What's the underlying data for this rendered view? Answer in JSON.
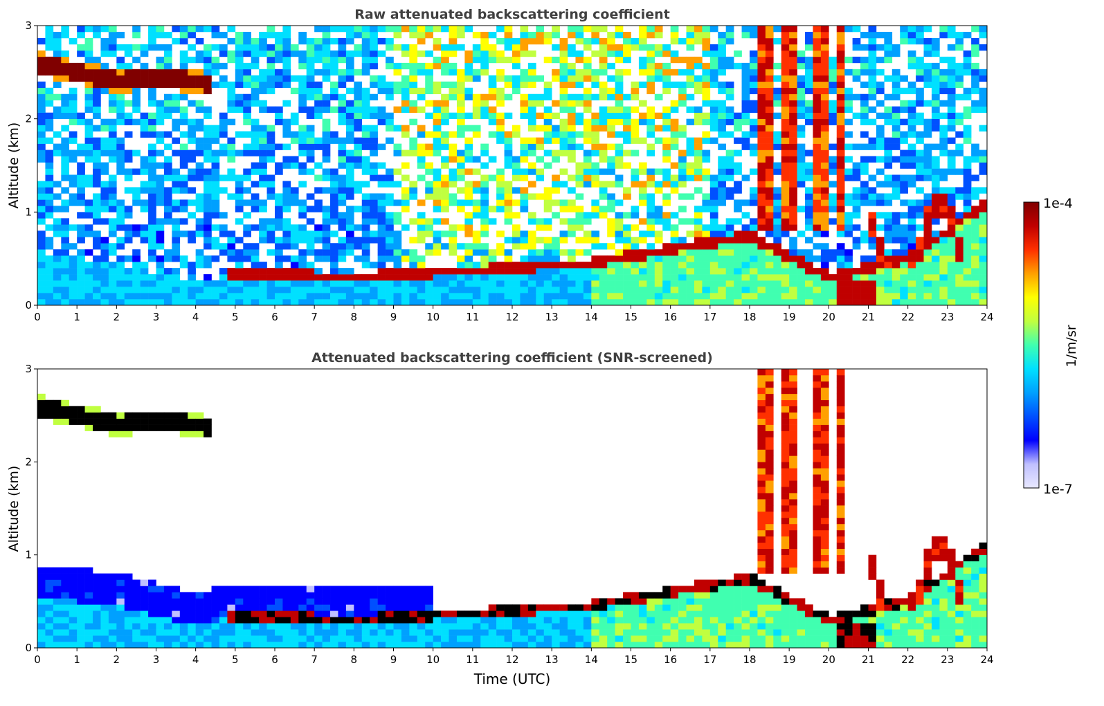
{
  "figure": {
    "colorbar": {
      "min_label": "1e-7",
      "max_label": "1e-4",
      "unit_label": "1/m/sr",
      "scale": "log",
      "range": [
        1e-07,
        0.0001
      ]
    },
    "time_axis_label": "Time (UTC)"
  },
  "chart_data": [
    {
      "type": "heatmap",
      "title": "Raw attenuated backscattering coefficient",
      "xlabel": "",
      "ylabel": "Altitude (km)",
      "xlim": [
        0,
        24
      ],
      "ylim": [
        0,
        3
      ],
      "xticks": [
        "0",
        "1",
        "2",
        "3",
        "4",
        "5",
        "6",
        "7",
        "8",
        "9",
        "10",
        "11",
        "12",
        "13",
        "14",
        "15",
        "16",
        "17",
        "18",
        "19",
        "20",
        "21",
        "22",
        "23",
        "24"
      ],
      "yticks": [
        "0",
        "1",
        "2",
        "3"
      ],
      "features": {
        "boundary_layer_top_km": [
          [
            0,
            0.55
          ],
          [
            2,
            0.45
          ],
          [
            4,
            0.25
          ],
          [
            5,
            0.35
          ],
          [
            8,
            0.3
          ],
          [
            10,
            0.35
          ],
          [
            12,
            0.4
          ],
          [
            14,
            0.45
          ],
          [
            16,
            0.6
          ],
          [
            18,
            0.75
          ],
          [
            20,
            0.3
          ],
          [
            22,
            0.5
          ],
          [
            24,
            1.1
          ]
        ],
        "elevated_layer": {
          "t_start": 0,
          "t_end": 4.3,
          "alt_km": [
            [
              0,
              2.6
            ],
            [
              1,
              2.5
            ],
            [
              2,
              2.4
            ],
            [
              3,
              2.45
            ],
            [
              4.3,
              2.38
            ]
          ]
        },
        "late_day_clouds": {
          "t_start": 18.2,
          "t_end": 23.5
        }
      }
    },
    {
      "type": "heatmap",
      "title": "Attenuated backscattering coefficient (SNR-screened)",
      "xlabel": "Time (UTC)",
      "ylabel": "Altitude (km)",
      "xlim": [
        0,
        24
      ],
      "ylim": [
        0,
        3
      ],
      "xticks": [
        "0",
        "1",
        "2",
        "3",
        "4",
        "5",
        "6",
        "7",
        "8",
        "9",
        "10",
        "11",
        "12",
        "13",
        "14",
        "15",
        "16",
        "17",
        "18",
        "19",
        "20",
        "21",
        "22",
        "23",
        "24"
      ],
      "yticks": [
        "0",
        "1",
        "2",
        "3"
      ]
    }
  ],
  "colors": {
    "colormap": [
      "#e8e8ff",
      "#c0c0ff",
      "#0000ff",
      "#0050ff",
      "#00a0ff",
      "#00e0ff",
      "#40ffb0",
      "#c0ff40",
      "#ffff00",
      "#ffa000",
      "#ff3000",
      "#c00000",
      "#800000"
    ],
    "screened_saturated": "#000000",
    "title_color": "#404040"
  }
}
